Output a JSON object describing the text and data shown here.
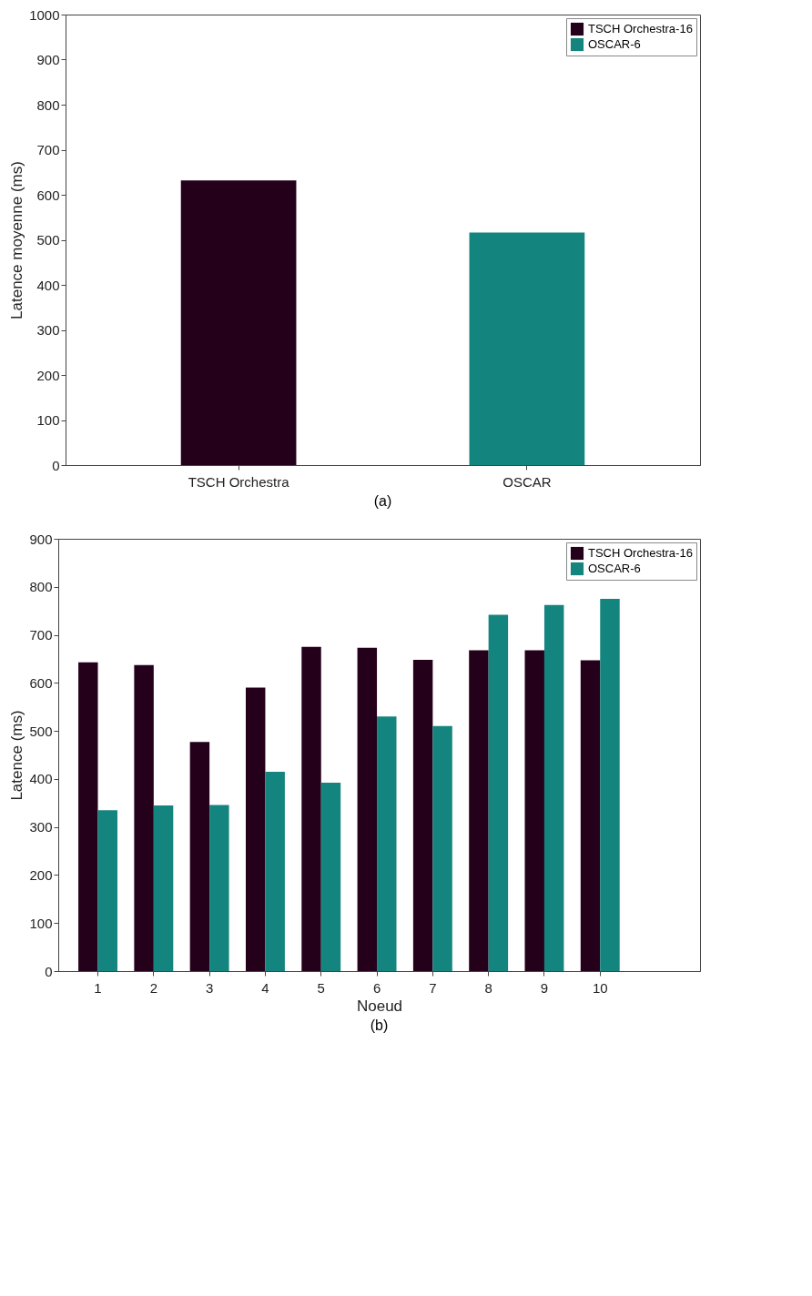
{
  "chart_data": [
    {
      "type": "bar",
      "ylabel": "Latence moyenne (ms)",
      "categories": [
        "TSCH Orchestra",
        "OSCAR"
      ],
      "series": [
        {
          "name": "TSCH Orchestra-16",
          "color": "#25001a",
          "values": [
            632,
            null
          ]
        },
        {
          "name": "OSCAR-6",
          "color": "#14847e",
          "values": [
            null,
            516
          ]
        }
      ],
      "ylim": [
        0,
        1000
      ],
      "yticks": [
        0,
        100,
        200,
        300,
        400,
        500,
        600,
        700,
        800,
        900,
        1000
      ],
      "grid": false,
      "legend": "top right",
      "annotations": [
        "(a)"
      ]
    },
    {
      "type": "bar",
      "xlabel": "Noeud",
      "ylabel": "Latence (ms)",
      "categories": [
        "1",
        "2",
        "3",
        "4",
        "5",
        "6",
        "7",
        "8",
        "9",
        "10"
      ],
      "series": [
        {
          "name": "TSCH Orchestra-16",
          "color": "#25001a",
          "values": [
            643,
            637,
            477,
            590,
            675,
            673,
            648,
            668,
            668,
            647
          ]
        },
        {
          "name": "OSCAR-6",
          "color": "#14847e",
          "values": [
            335,
            345,
            346,
            415,
            392,
            530,
            510,
            742,
            762,
            775
          ]
        }
      ],
      "ylim": [
        0,
        900
      ],
      "yticks": [
        0,
        100,
        200,
        300,
        400,
        500,
        600,
        700,
        800,
        900
      ],
      "grid": false,
      "legend": "top right",
      "annotations": [
        "(b)"
      ]
    }
  ]
}
